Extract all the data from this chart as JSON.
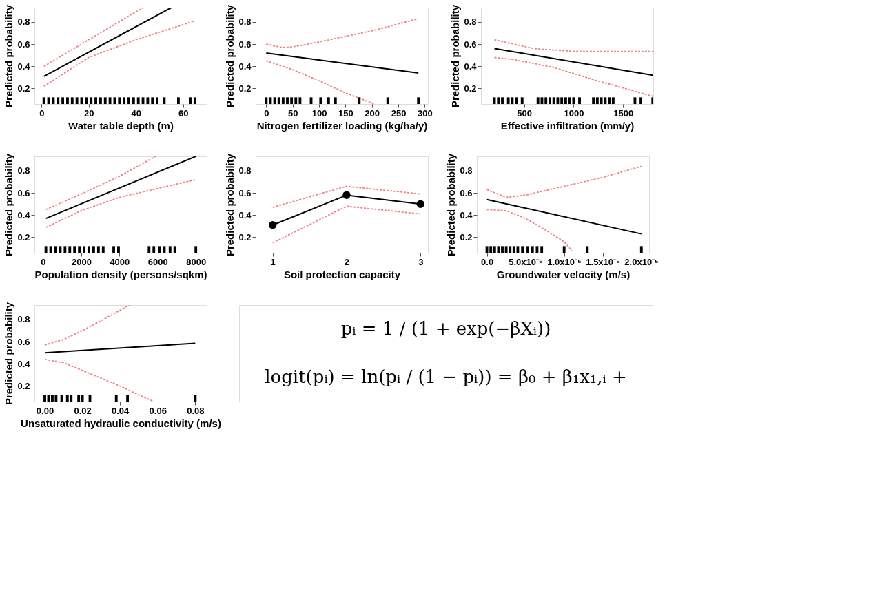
{
  "chart_data": [
    {
      "type": "line",
      "xlabel": "Water table depth (m)",
      "ylabel": "Predicted probability",
      "xlim": [
        -3,
        70
      ],
      "ylim": [
        0.06,
        0.93
      ],
      "xticks": [
        0,
        20,
        40,
        60
      ],
      "yticks": [
        0.2,
        0.4,
        0.6,
        0.8
      ],
      "grid": false,
      "series": [
        {
          "color": "#000000",
          "x": [
            1,
            55
          ],
          "values": [
            0.31,
            0.93
          ]
        },
        {
          "color": "#f08080",
          "line_style": "dashed",
          "x": [
            1,
            43
          ],
          "values": [
            0.4,
            0.93
          ]
        },
        {
          "color": "#f08080",
          "line_style": "dashed",
          "x": [
            1,
            20,
            40,
            65
          ],
          "values": [
            0.22,
            0.48,
            0.64,
            0.81
          ]
        },
        {
          "type": "scatter",
          "color": "#000000",
          "x": [
            1,
            3,
            5,
            7,
            9,
            11,
            13,
            15,
            17,
            19,
            21,
            23,
            25,
            27,
            29,
            31,
            33,
            35,
            37,
            39,
            41,
            43,
            45,
            47,
            49,
            52,
            58,
            63,
            65
          ],
          "values": [
            0.09,
            0.09,
            0.09,
            0.09,
            0.09,
            0.09,
            0.09,
            0.09,
            0.09,
            0.09,
            0.09,
            0.09,
            0.09,
            0.09,
            0.09,
            0.09,
            0.09,
            0.09,
            0.09,
            0.09,
            0.09,
            0.09,
            0.09,
            0.09,
            0.09,
            0.09,
            0.09,
            0.09,
            0.09
          ]
        }
      ]
    },
    {
      "type": "line",
      "xlabel": "Nitrogen fertilizer loading (kg/ha/y)",
      "ylabel": "Predicted probability",
      "xlim": [
        -20,
        306
      ],
      "ylim": [
        0.06,
        0.93
      ],
      "xticks": [
        0,
        50,
        100,
        150,
        200,
        250,
        300
      ],
      "yticks": [
        0.2,
        0.4,
        0.6,
        0.8
      ],
      "grid": false,
      "series": [
        {
          "color": "#000000",
          "x": [
            0,
            288
          ],
          "values": [
            0.52,
            0.34
          ]
        },
        {
          "color": "#f08080",
          "line_style": "dashed",
          "x": [
            0,
            30,
            50,
            100,
            150,
            200,
            288
          ],
          "values": [
            0.6,
            0.57,
            0.575,
            0.62,
            0.67,
            0.72,
            0.83
          ]
        },
        {
          "color": "#f08080",
          "line_style": "dashed",
          "x": [
            0,
            50,
            100,
            150,
            205
          ],
          "values": [
            0.45,
            0.37,
            0.27,
            0.16,
            0.06
          ]
        },
        {
          "type": "scatter",
          "color": "#000000",
          "x": [
            0,
            8,
            16,
            24,
            32,
            40,
            48,
            56,
            64,
            85,
            103,
            118,
            131,
            176,
            230,
            288
          ],
          "values": [
            0.09,
            0.09,
            0.09,
            0.09,
            0.09,
            0.09,
            0.09,
            0.09,
            0.09,
            0.09,
            0.09,
            0.09,
            0.09,
            0.09,
            0.09,
            0.09
          ]
        }
      ]
    },
    {
      "type": "line",
      "xlabel": "Effective infiltration (mm/y)",
      "ylabel": "Predicted probability",
      "xlim": [
        64,
        1805
      ],
      "ylim": [
        0.06,
        0.93
      ],
      "xticks": [
        500,
        1000,
        1500
      ],
      "yticks": [
        0.2,
        0.4,
        0.6,
        0.8
      ],
      "grid": false,
      "series": [
        {
          "color": "#000000",
          "x": [
            200,
            1800
          ],
          "values": [
            0.56,
            0.32
          ]
        },
        {
          "color": "#f08080",
          "line_style": "dashed",
          "x": [
            200,
            600,
            1000,
            1800
          ],
          "values": [
            0.64,
            0.56,
            0.535,
            0.535
          ]
        },
        {
          "color": "#f08080",
          "line_style": "dashed",
          "x": [
            200,
            400,
            800,
            1200,
            1600,
            1800
          ],
          "values": [
            0.48,
            0.46,
            0.39,
            0.28,
            0.18,
            0.13
          ]
        },
        {
          "type": "scatter",
          "color": "#000000",
          "x": [
            200,
            240,
            280,
            340,
            380,
            420,
            480,
            640,
            680,
            720,
            760,
            800,
            840,
            880,
            920,
            960,
            1000,
            1060,
            1200,
            1240,
            1280,
            1320,
            1360,
            1400,
            1620,
            1680,
            1800
          ],
          "values": [
            0.09,
            0.09,
            0.09,
            0.09,
            0.09,
            0.09,
            0.09,
            0.09,
            0.09,
            0.09,
            0.09,
            0.09,
            0.09,
            0.09,
            0.09,
            0.09,
            0.09,
            0.09,
            0.09,
            0.09,
            0.09,
            0.09,
            0.09,
            0.09,
            0.09,
            0.09,
            0.09
          ]
        }
      ]
    },
    {
      "type": "line",
      "xlabel": "Population density (persons/sqkm)",
      "ylabel": "Predicted probability",
      "xlim": [
        -450,
        8570
      ],
      "ylim": [
        0.06,
        0.93
      ],
      "xticks": [
        0,
        2000,
        4000,
        6000,
        8000
      ],
      "yticks": [
        0.2,
        0.4,
        0.6,
        0.8
      ],
      "grid": false,
      "series": [
        {
          "color": "#000000",
          "x": [
            150,
            8000
          ],
          "values": [
            0.37,
            0.93
          ]
        },
        {
          "color": "#f08080",
          "line_style": "dashed",
          "x": [
            150,
            2000,
            4000,
            5900
          ],
          "values": [
            0.45,
            0.59,
            0.75,
            0.93
          ]
        },
        {
          "color": "#f08080",
          "line_style": "dashed",
          "x": [
            150,
            2000,
            4000,
            6000,
            8000
          ],
          "values": [
            0.29,
            0.44,
            0.56,
            0.64,
            0.72
          ]
        },
        {
          "type": "scatter",
          "color": "#000000",
          "x": [
            150,
            400,
            650,
            900,
            1150,
            1400,
            1650,
            1900,
            2150,
            2400,
            2650,
            2900,
            3150,
            3700,
            3950,
            5550,
            5800,
            6100,
            6350,
            6650,
            6900,
            8000
          ],
          "values": [
            0.09,
            0.09,
            0.09,
            0.09,
            0.09,
            0.09,
            0.09,
            0.09,
            0.09,
            0.09,
            0.09,
            0.09,
            0.09,
            0.09,
            0.09,
            0.09,
            0.09,
            0.09,
            0.09,
            0.09,
            0.09,
            0.09
          ]
        }
      ]
    },
    {
      "type": "line",
      "xlabel": "Soil protection capacity",
      "ylabel": "Predicted probability",
      "xlim": [
        0.77,
        3.1
      ],
      "ylim": [
        0.06,
        0.93
      ],
      "xticks": [
        1,
        2,
        3
      ],
      "yticks": [
        0.2,
        0.4,
        0.6,
        0.8
      ],
      "grid": false,
      "series": [
        {
          "color": "#000000",
          "marker": "circle",
          "x": [
            1,
            2,
            3
          ],
          "values": [
            0.31,
            0.58,
            0.5
          ]
        },
        {
          "color": "#f08080",
          "line_style": "dashed",
          "x": [
            1,
            2,
            3
          ],
          "values": [
            0.47,
            0.66,
            0.59
          ]
        },
        {
          "color": "#f08080",
          "line_style": "dashed",
          "x": [
            1,
            2,
            3
          ],
          "values": [
            0.15,
            0.48,
            0.41
          ]
        }
      ]
    },
    {
      "type": "line",
      "xlabel": "Groundwater velocity (m/s)",
      "ylabel": "Predicted probability",
      "xlim": [
        -1.3e-06,
        2.1e-05
      ],
      "ylim": [
        0.06,
        0.93
      ],
      "xticks": [
        {
          "value": 0,
          "label": "0.0"
        },
        {
          "value": 5e-06,
          "label": "5.0x10⁻⁶"
        },
        {
          "value": 1e-05,
          "label": "1.0x10⁻⁵"
        },
        {
          "value": 1.5e-05,
          "label": "1.5x10⁻⁵"
        },
        {
          "value": 2e-05,
          "label": "2.0x10⁻⁵"
        }
      ],
      "yticks": [
        0.2,
        0.4,
        0.6,
        0.8
      ],
      "grid": false,
      "series": [
        {
          "color": "#000000",
          "x": [
            0,
            2e-05
          ],
          "values": [
            0.54,
            0.23
          ]
        },
        {
          "color": "#f08080",
          "line_style": "dashed",
          "x": [
            0,
            2.5e-06,
            5e-06,
            1e-05,
            1.5e-05,
            2e-05
          ],
          "values": [
            0.63,
            0.56,
            0.58,
            0.66,
            0.74,
            0.84
          ]
        },
        {
          "color": "#f08080",
          "line_style": "dashed",
          "x": [
            0,
            2.5e-06,
            5e-06,
            7.5e-06,
            1e-05,
            1.1e-05
          ],
          "values": [
            0.45,
            0.44,
            0.37,
            0.27,
            0.16,
            0.08
          ]
        },
        {
          "type": "scatter",
          "color": "#000000",
          "x": [
            0,
            5e-07,
            1e-06,
            1.5e-06,
            2e-06,
            2.5e-06,
            3e-06,
            3.5e-06,
            4e-06,
            4.6e-06,
            5.3e-06,
            5.9e-06,
            6.5e-06,
            7.1e-06,
            1e-05,
            1.3e-05,
            2e-05
          ],
          "values": [
            0.09,
            0.09,
            0.09,
            0.09,
            0.09,
            0.09,
            0.09,
            0.09,
            0.09,
            0.09,
            0.09,
            0.09,
            0.09,
            0.09,
            0.09,
            0.09,
            0.09
          ]
        }
      ]
    },
    {
      "type": "line",
      "xlabel": "Unsaturated hydraulic conductivity (m/s)",
      "ylabel": "Predicted probability",
      "xlim": [
        -0.0055,
        0.0861
      ],
      "ylim": [
        0.06,
        0.93
      ],
      "xticks": [
        {
          "value": 0,
          "label": "0.00"
        },
        {
          "value": 0.02,
          "label": "0.02"
        },
        {
          "value": 0.04,
          "label": "0.04"
        },
        {
          "value": 0.06,
          "label": "0.06"
        },
        {
          "value": 0.08,
          "label": "0.08"
        }
      ],
      "yticks": [
        0.2,
        0.4,
        0.6,
        0.8
      ],
      "grid": false,
      "series": [
        {
          "color": "#000000",
          "x": [
            0,
            0.08
          ],
          "values": [
            0.5,
            0.585
          ]
        },
        {
          "color": "#f08080",
          "line_style": "dashed",
          "x": [
            0,
            0.01,
            0.02,
            0.03,
            0.045
          ],
          "values": [
            0.57,
            0.62,
            0.7,
            0.79,
            0.93
          ]
        },
        {
          "color": "#f08080",
          "line_style": "dashed",
          "x": [
            0,
            0.01,
            0.02,
            0.03,
            0.04,
            0.05,
            0.058
          ],
          "values": [
            0.44,
            0.41,
            0.34,
            0.27,
            0.2,
            0.12,
            0.06
          ]
        },
        {
          "type": "scatter",
          "color": "#000000",
          "x": [
            0,
            0.002,
            0.004,
            0.006,
            0.009,
            0.012,
            0.014,
            0.018,
            0.02,
            0.024,
            0.038,
            0.044,
            0.08
          ],
          "values": [
            0.09,
            0.09,
            0.09,
            0.09,
            0.09,
            0.09,
            0.09,
            0.09,
            0.09,
            0.09,
            0.09,
            0.09,
            0.09
          ]
        }
      ]
    },
    {
      "type": "other",
      "annotations": [
        "pᵢ = 1 / (1 + exp(−βXᵢ))",
        "logit(pᵢ) = ln(pᵢ / (1 − pᵢ)) = β₀ + β₁x₁,ᵢ +"
      ]
    }
  ]
}
